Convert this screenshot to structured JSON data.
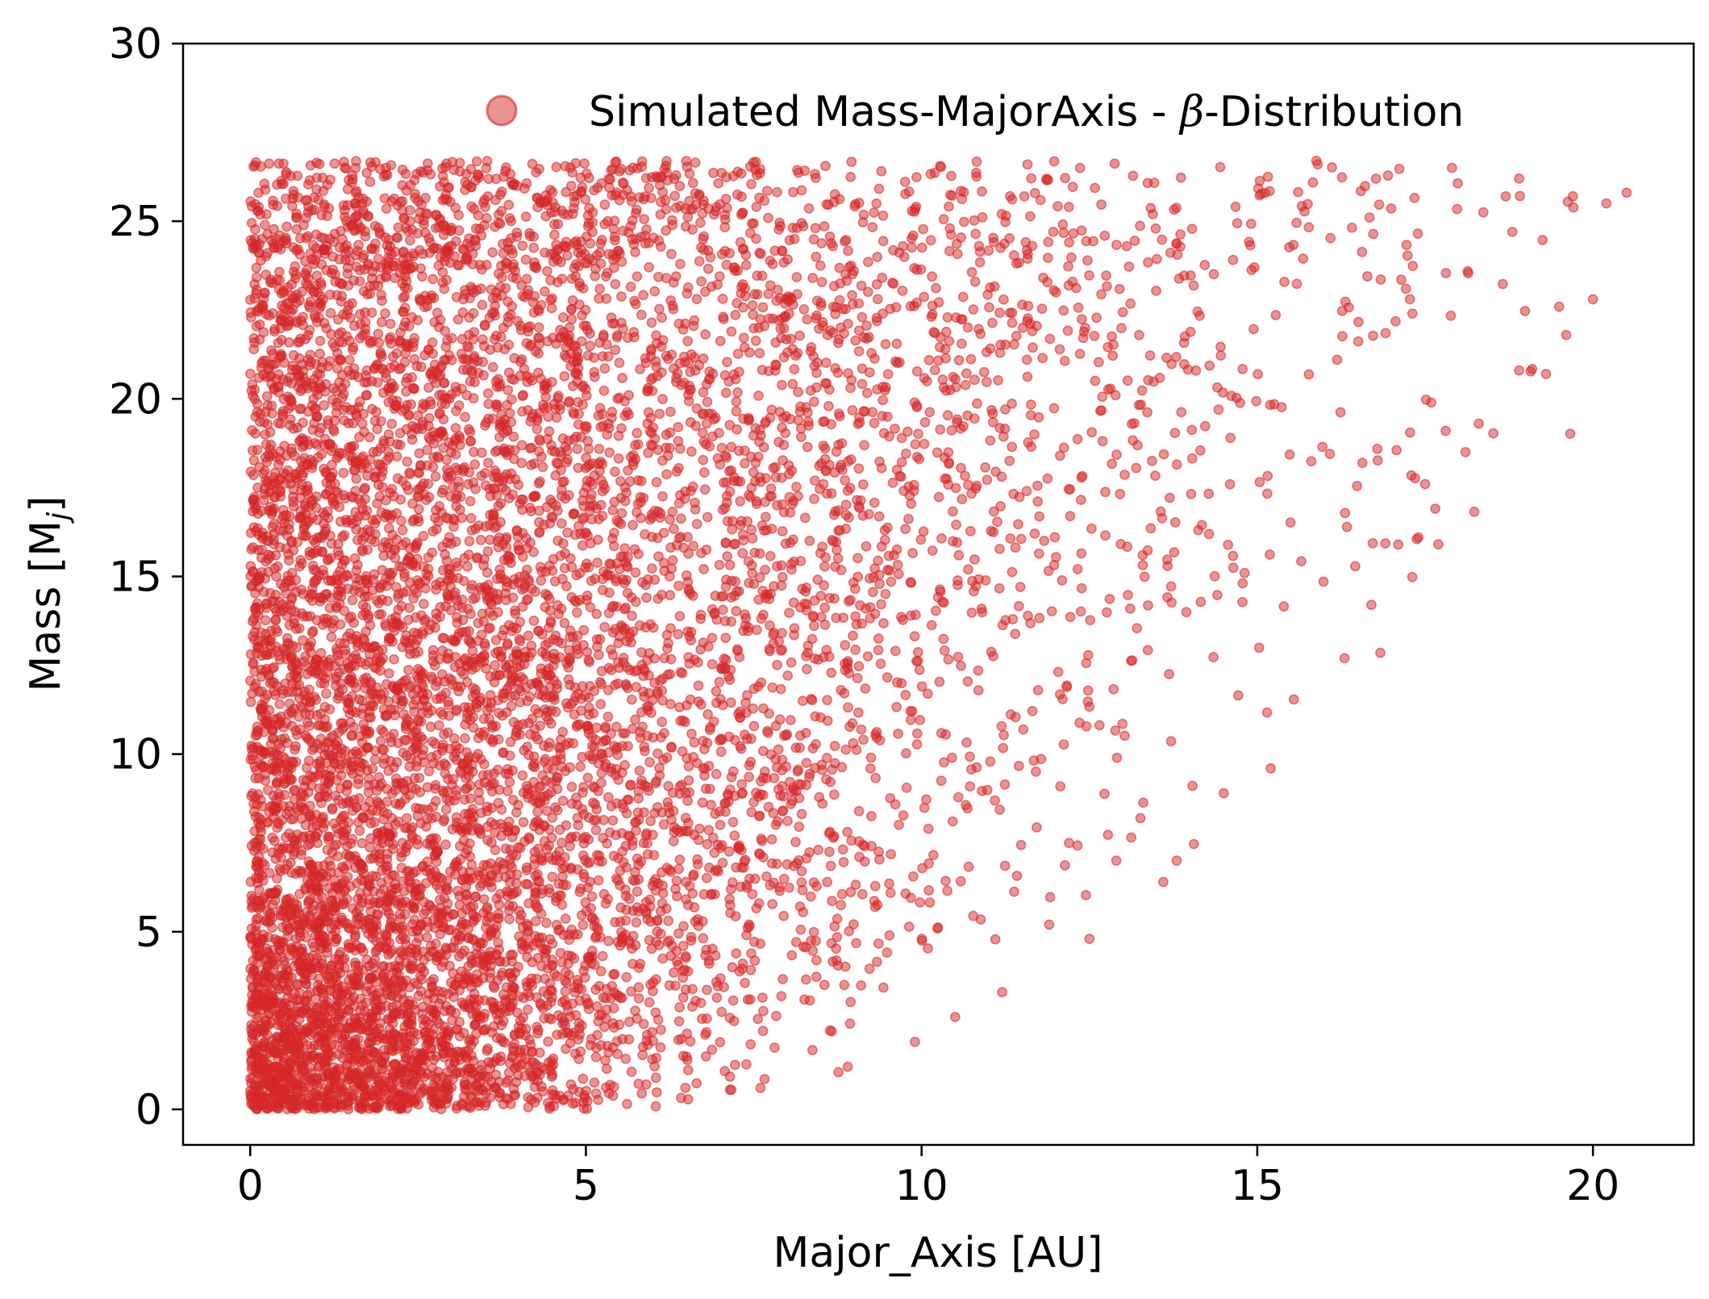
{
  "chart_data": {
    "type": "scatter",
    "title": "",
    "xlabel": "Major_Axis [AU]",
    "ylabel": "Mass [M",
    "ylabel_subscript": "j",
    "ylabel_suffix": "]",
    "xlim": [
      -1.0,
      21.5
    ],
    "ylim": [
      -1.0,
      30.0
    ],
    "x_ticks": [
      0,
      5,
      10,
      15,
      20
    ],
    "y_ticks": [
      0,
      5,
      10,
      15,
      20,
      25,
      30
    ],
    "x_tick_labels": [
      "0",
      "5",
      "10",
      "15",
      "20"
    ],
    "y_tick_labels": [
      "0",
      "5",
      "10",
      "15",
      "20",
      "25",
      "30"
    ],
    "grid": false,
    "legend_position": "top-right",
    "series": [
      {
        "name": "Simulated Mass-MajorAxis - β-Distribution",
        "legend_prefix": "Simulated Mass-MajorAxis - ",
        "legend_symbol": "β",
        "legend_suffix": "-Distribution",
        "color": "#d62728",
        "alpha": 0.5,
        "point_count": 9000,
        "mass_range": [
          0.0,
          26.7
        ],
        "major_axis_range": [
          0.0,
          20.6
        ],
        "sample_points": [
          {
            "x": 20.5,
            "y": 25.8
          },
          {
            "x": 20.2,
            "y": 25.5
          },
          {
            "x": 20.0,
            "y": 22.8
          },
          {
            "x": 19.7,
            "y": 25.7
          },
          {
            "x": 19.6,
            "y": 21.8
          },
          {
            "x": 19.3,
            "y": 20.7
          },
          {
            "x": 18.9,
            "y": 26.2
          },
          {
            "x": 18.9,
            "y": 20.8
          },
          {
            "x": 18.7,
            "y": 25.7
          },
          {
            "x": 18.8,
            "y": 24.7
          },
          {
            "x": 18.3,
            "y": 19.3
          },
          {
            "x": 18.1,
            "y": 18.5
          },
          {
            "x": 17.9,
            "y": 26.5
          },
          {
            "x": 17.5,
            "y": 17.6
          },
          {
            "x": 17.4,
            "y": 16.1
          },
          {
            "x": 17.1,
            "y": 15.9
          },
          {
            "x": 16.7,
            "y": 14.2
          },
          {
            "x": 16.3,
            "y": 12.7
          },
          {
            "x": 15.9,
            "y": 26.6
          },
          {
            "x": 15.2,
            "y": 9.6
          },
          {
            "x": 14.5,
            "y": 8.9
          },
          {
            "x": 13.8,
            "y": 7.0
          },
          {
            "x": 13.6,
            "y": 6.4
          },
          {
            "x": 12.9,
            "y": 7.0
          },
          {
            "x": 12.5,
            "y": 4.8
          },
          {
            "x": 11.9,
            "y": 5.2
          },
          {
            "x": 11.2,
            "y": 3.3
          },
          {
            "x": 10.5,
            "y": 2.6
          },
          {
            "x": 9.9,
            "y": 1.9
          },
          {
            "x": 8.9,
            "y": 1.2
          },
          {
            "x": 7.6,
            "y": 0.6
          }
        ]
      }
    ]
  }
}
